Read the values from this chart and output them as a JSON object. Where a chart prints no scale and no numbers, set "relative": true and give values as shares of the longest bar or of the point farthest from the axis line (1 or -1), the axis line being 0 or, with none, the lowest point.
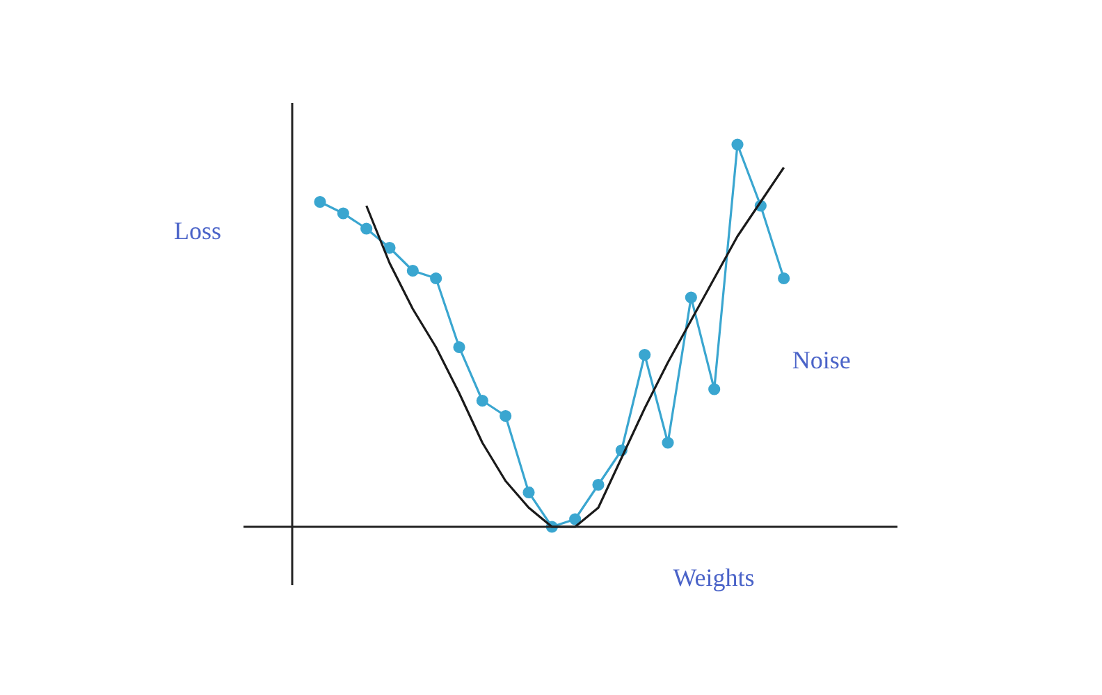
{
  "chart_data": {
    "type": "line",
    "relative": true,
    "xlabel": "Weights",
    "ylabel": "Loss",
    "legend": false,
    "categories": [
      null,
      null,
      null,
      null,
      null,
      null,
      null,
      null,
      null,
      null,
      null,
      null,
      null,
      null,
      null,
      null,
      null,
      null,
      null,
      null,
      null,
      null
    ],
    "series": [
      {
        "color": "#1a1a1a",
        "marker": "none",
        "values": [
          null,
          null,
          0.84,
          0.69,
          0.57,
          0.47,
          0.35,
          0.22,
          0.12,
          0.05,
          0,
          0,
          0.05,
          0.18,
          0.31,
          0.43,
          0.54,
          0.65,
          0.76,
          0.85,
          0.94,
          null
        ]
      },
      {
        "name": "Noise",
        "color": "#3aa6d0",
        "marker": "circle",
        "values": [
          0.85,
          0.82,
          0.78,
          0.73,
          0.67,
          0.65,
          0.47,
          0.33,
          0.29,
          0.09,
          0,
          0.02,
          0.11,
          0.2,
          0.45,
          0.22,
          0.6,
          0.36,
          1,
          0.84,
          0.65,
          null
        ]
      }
    ]
  }
}
